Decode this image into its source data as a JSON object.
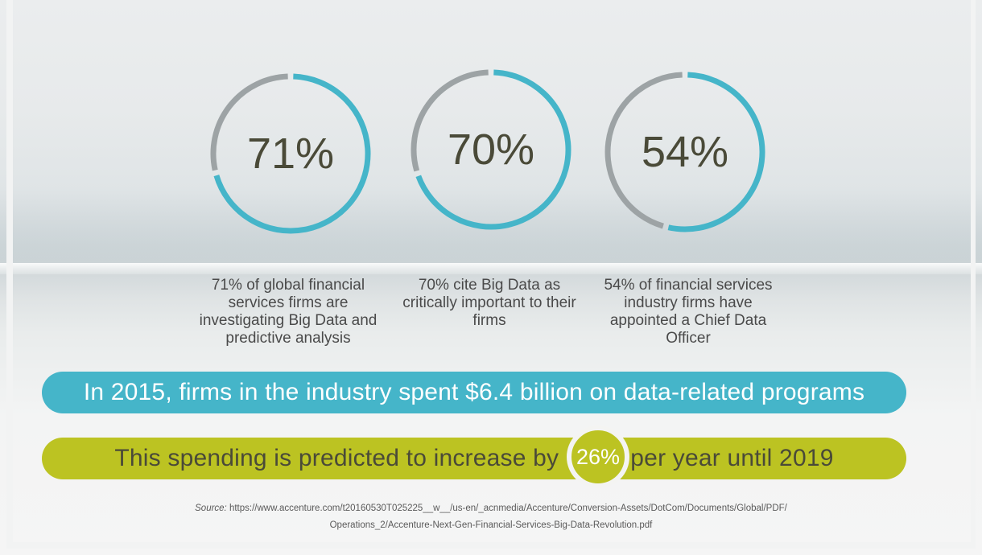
{
  "chart_data": {
    "type": "pie",
    "stats": [
      {
        "value": 71,
        "label": "71%",
        "description": "71% of global financial services firms are investigating Big Data and predictive analysis"
      },
      {
        "value": 70,
        "label": "70%",
        "description": "70% cite Big Data as critically important to their firms"
      },
      {
        "value": 54,
        "label": "54%",
        "description": "54% of financial services industry firms have appointed a Chief Data Officer"
      }
    ],
    "colors": {
      "filled": "#45b5c9",
      "remainder": "#9da3a5"
    }
  },
  "banners": {
    "spend": "In 2015, firms in the industry spent $6.4 billion on data-related programs",
    "growth_before": "This spending is predicted to increase by ",
    "growth_value": "26%",
    "growth_after": " per year until 2019"
  },
  "source": {
    "label": "Source:",
    "line1": " https://www.accenture.com/t20160530T025225__w__/us-en/_acnmedia/Accenture/Conversion-Assets/DotCom/Documents/Global/PDF/",
    "line2": "Operations_2/Accenture-Next-Gen-Financial-Services-Big-Data-Revolution.pdf"
  },
  "colors": {
    "blue": "#45b5c9",
    "lime": "#bcc322",
    "gray": "#9da3a5",
    "text": "#4a4a4a"
  }
}
